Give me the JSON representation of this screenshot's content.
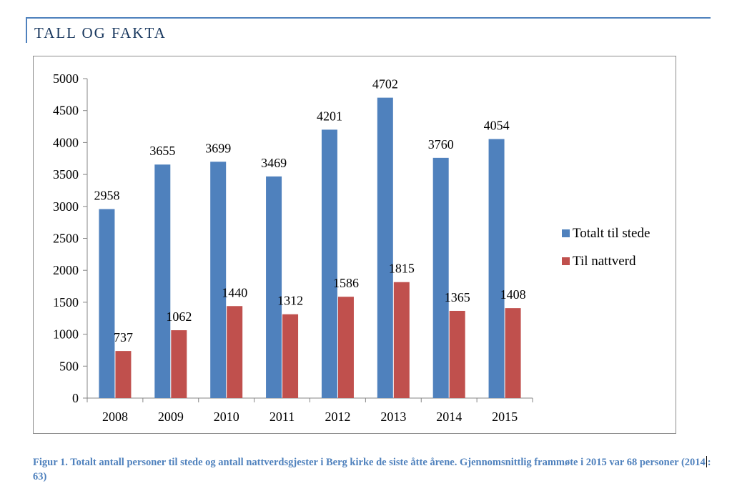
{
  "header": {
    "title": "TALL OG FAKTA"
  },
  "chart_data": {
    "type": "bar",
    "title": "",
    "xlabel": "",
    "ylabel": "",
    "categories": [
      "2008",
      "2009",
      "2010",
      "2011",
      "2012",
      "2013",
      "2014",
      "2015"
    ],
    "series": [
      {
        "name": "Totalt til stede",
        "color": "#4f81bd",
        "values": [
          2958,
          3655,
          3699,
          3469,
          4201,
          4702,
          3760,
          4054
        ]
      },
      {
        "name": "Til nattverd",
        "color": "#c0504d",
        "values": [
          737,
          1062,
          1440,
          1312,
          1586,
          1815,
          1365,
          1408
        ]
      }
    ],
    "ylim": [
      0,
      5000
    ],
    "yticks": [
      0,
      500,
      1000,
      1500,
      2000,
      2500,
      3000,
      3500,
      4000,
      4500,
      5000
    ],
    "grid": false,
    "legend": "right",
    "data_labels": true
  },
  "caption": {
    "part1": "Figur 1. Totalt antall personer til stede og antall nattverdsgjester i Berg kirke de siste åtte årene. Gjennomsnittlig frammøte i 2015 var 68 personer (2014",
    "part2": ": 63)"
  }
}
